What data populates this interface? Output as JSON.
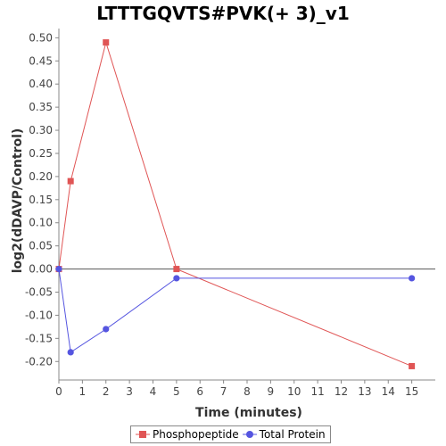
{
  "chart_data": {
    "type": "line",
    "title": "LTTTGQVTS#PVK(+ 3)_v1",
    "xlabel": "Time (minutes)",
    "ylabel": "log2(dDAVP/Control)",
    "xlim": [
      0,
      16
    ],
    "ylim": [
      -0.24,
      0.52
    ],
    "x_ticks": [
      0,
      1,
      2,
      3,
      4,
      5,
      6,
      7,
      8,
      9,
      10,
      11,
      12,
      13,
      14,
      15
    ],
    "y_ticks": [
      -0.2,
      -0.15,
      -0.1,
      -0.05,
      0.0,
      0.05,
      0.1,
      0.15,
      0.2,
      0.25,
      0.3,
      0.35,
      0.4,
      0.45,
      0.5
    ],
    "y_tick_labels": [
      "-0.20",
      "-0.15",
      "-0.10",
      "-0.05",
      "0.00",
      "0.05",
      "0.10",
      "0.15",
      "0.20",
      "0.25",
      "0.30",
      "0.35",
      "0.40",
      "0.45",
      "0.50"
    ],
    "zero_line": true,
    "grid": false,
    "legend_position": "bottom",
    "series": [
      {
        "name": "Phosphopeptide",
        "color": "#e05555",
        "marker": "square",
        "x": [
          0,
          0.5,
          2,
          5,
          15
        ],
        "y": [
          0.0,
          0.19,
          0.49,
          0.0,
          -0.21
        ]
      },
      {
        "name": "Total Protein",
        "color": "#5555e0",
        "marker": "circle",
        "x": [
          0,
          0.5,
          2,
          5,
          15
        ],
        "y": [
          0.0,
          -0.18,
          -0.13,
          -0.02,
          -0.02
        ]
      }
    ]
  }
}
